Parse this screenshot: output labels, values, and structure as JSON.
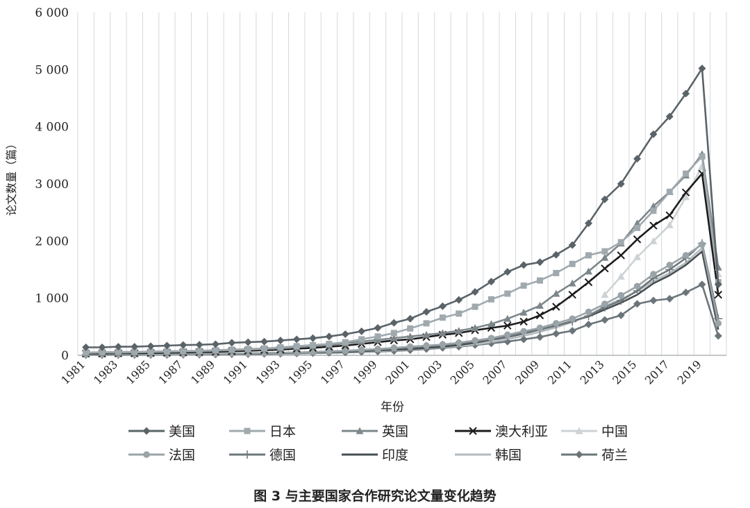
{
  "figure_caption": "图 3 与主要国家合作研究论文量变化趋势",
  "chart_data": {
    "type": "line",
    "xlabel": "年份",
    "ylabel": "论文数量（篇）",
    "ylim": [
      0,
      6000
    ],
    "yticks": [
      0,
      1000,
      2000,
      3000,
      4000,
      5000,
      6000
    ],
    "ytick_labels": [
      "0",
      "1 000",
      "2 000",
      "3 000",
      "4 000",
      "5 000",
      "6 000"
    ],
    "x": [
      1981,
      1982,
      1983,
      1984,
      1985,
      1986,
      1987,
      1988,
      1989,
      1990,
      1991,
      1992,
      1993,
      1994,
      1995,
      1996,
      1997,
      1998,
      1999,
      2000,
      2001,
      2002,
      2003,
      2004,
      2005,
      2006,
      2007,
      2008,
      2009,
      2010,
      2011,
      2012,
      2013,
      2014,
      2015,
      2016,
      2017,
      2018,
      2019,
      2020
    ],
    "xtick_labels": [
      "1981",
      "1983",
      "1985",
      "1987",
      "1989",
      "1991",
      "1993",
      "1995",
      "1997",
      "1999",
      "2001",
      "2003",
      "2005",
      "2007",
      "2009",
      "2011",
      "2013",
      "2015",
      "2017",
      "2019"
    ],
    "grid": "vertical",
    "legend_position": "bottom",
    "series": [
      {
        "name": "美国",
        "color": "#5a6367",
        "marker": "diamond",
        "values": [
          140,
          140,
          150,
          150,
          160,
          170,
          180,
          185,
          195,
          220,
          230,
          240,
          260,
          280,
          300,
          330,
          370,
          420,
          480,
          570,
          640,
          760,
          860,
          970,
          1110,
          1290,
          1460,
          1580,
          1630,
          1760,
          1930,
          2310,
          2730,
          3000,
          3440,
          3870,
          4180,
          4580,
          5020,
          1240
        ]
      },
      {
        "name": "日本",
        "color": "#a0a9ae",
        "marker": "square",
        "values": [
          50,
          55,
          60,
          60,
          65,
          70,
          75,
          80,
          90,
          100,
          110,
          120,
          140,
          160,
          180,
          200,
          230,
          280,
          330,
          390,
          470,
          560,
          660,
          730,
          850,
          980,
          1080,
          1220,
          1310,
          1440,
          1600,
          1750,
          1820,
          1980,
          2230,
          2530,
          2860,
          3180,
          3480,
          1280
        ]
      },
      {
        "name": "英国",
        "color": "#7d878b",
        "marker": "triangle",
        "values": [
          40,
          45,
          45,
          50,
          55,
          60,
          65,
          70,
          80,
          90,
          100,
          110,
          120,
          140,
          160,
          180,
          210,
          240,
          270,
          300,
          330,
          360,
          390,
          430,
          480,
          550,
          640,
          750,
          870,
          1080,
          1260,
          1470,
          1710,
          1960,
          2310,
          2610,
          2860,
          3150,
          3520,
          1540
        ]
      },
      {
        "name": "澳大利亚",
        "color": "#1c1c1c",
        "marker": "x",
        "values": [
          30,
          30,
          35,
          35,
          40,
          45,
          50,
          55,
          60,
          70,
          80,
          90,
          100,
          115,
          130,
          150,
          170,
          200,
          230,
          260,
          280,
          320,
          360,
          390,
          440,
          480,
          520,
          590,
          700,
          850,
          1060,
          1280,
          1520,
          1750,
          2030,
          2270,
          2450,
          2850,
          3180,
          1060
        ]
      },
      {
        "name": "中国",
        "color": "#cdd2d4",
        "marker": "triangle",
        "values": [
          null,
          null,
          null,
          null,
          null,
          null,
          null,
          null,
          null,
          null,
          null,
          null,
          null,
          null,
          null,
          null,
          null,
          null,
          null,
          null,
          null,
          null,
          null,
          null,
          null,
          null,
          null,
          null,
          null,
          null,
          null,
          null,
          1060,
          1380,
          1720,
          2000,
          2280,
          2770,
          3310,
          1420
        ]
      },
      {
        "name": "法国",
        "color": "#9aa3a7",
        "marker": "circle",
        "values": [
          10,
          10,
          12,
          12,
          15,
          15,
          20,
          22,
          25,
          30,
          35,
          40,
          45,
          50,
          60,
          70,
          80,
          95,
          110,
          130,
          150,
          170,
          190,
          220,
          260,
          300,
          360,
          420,
          480,
          560,
          640,
          760,
          900,
          1050,
          1210,
          1420,
          1580,
          1750,
          1940,
          560
        ]
      },
      {
        "name": "德国",
        "color": "#6d777b",
        "marker": "plus",
        "values": [
          10,
          10,
          12,
          12,
          15,
          15,
          20,
          22,
          25,
          30,
          35,
          40,
          45,
          50,
          55,
          65,
          75,
          85,
          100,
          120,
          140,
          160,
          180,
          210,
          240,
          280,
          330,
          390,
          450,
          520,
          590,
          690,
          840,
          960,
          1130,
          1350,
          1500,
          1700,
          1960,
          640
        ]
      },
      {
        "name": "印度",
        "color": "#454d50",
        "marker": "none",
        "values": [
          8,
          8,
          10,
          10,
          12,
          12,
          15,
          18,
          20,
          25,
          28,
          32,
          36,
          42,
          48,
          55,
          62,
          72,
          85,
          98,
          110,
          130,
          150,
          180,
          220,
          270,
          320,
          380,
          450,
          520,
          600,
          680,
          800,
          920,
          1060,
          1260,
          1400,
          1580,
          1820,
          450
        ]
      },
      {
        "name": "韩国",
        "color": "#b3babd",
        "marker": "none",
        "values": [
          5,
          5,
          6,
          6,
          8,
          8,
          10,
          12,
          14,
          16,
          20,
          25,
          30,
          35,
          40,
          48,
          56,
          64,
          74,
          86,
          100,
          120,
          140,
          160,
          190,
          230,
          280,
          340,
          410,
          490,
          580,
          700,
          860,
          980,
          1120,
          1300,
          1440,
          1620,
          1880,
          510
        ]
      },
      {
        "name": "荷兰",
        "color": "#6b7579",
        "marker": "diamond",
        "values": [
          5,
          5,
          6,
          6,
          8,
          8,
          10,
          12,
          14,
          16,
          20,
          24,
          28,
          32,
          38,
          44,
          50,
          58,
          66,
          76,
          90,
          110,
          130,
          150,
          180,
          210,
          240,
          280,
          320,
          380,
          430,
          540,
          620,
          700,
          900,
          960,
          990,
          1100,
          1240,
          340
        ]
      }
    ]
  }
}
